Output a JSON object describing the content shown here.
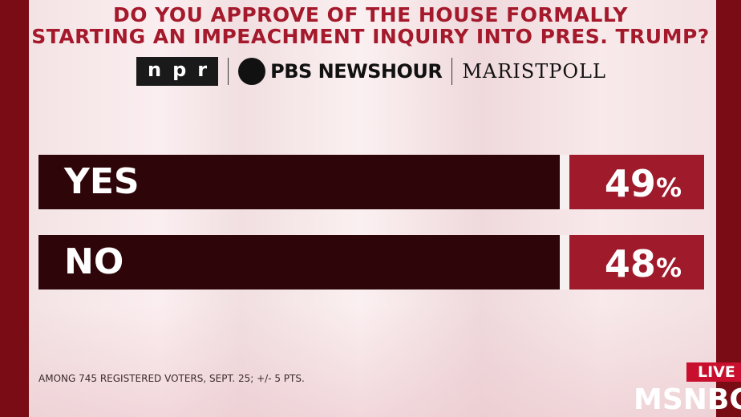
{
  "header": {
    "title_lines": [
      "DO YOU APPROVE OF THE HOUSE FORMALLY",
      "STARTING AN IMPEACHMENT INQUIRY INTO PRES. TRUMP?"
    ],
    "logos": [
      "npr",
      "PBS NEWSHOUR",
      "MARISTPOLL"
    ]
  },
  "table": {
    "rows": [
      {
        "label": "YES",
        "value": "49",
        "unit": "%"
      },
      {
        "label": "NO",
        "value": "48",
        "unit": "%"
      }
    ]
  },
  "footnote": "AMONG 745 REGISTERED VOTERS, SEPT. 25; +/- 5 PTS.",
  "overlay": {
    "live": "LIVE",
    "network": "MSNBC"
  }
}
